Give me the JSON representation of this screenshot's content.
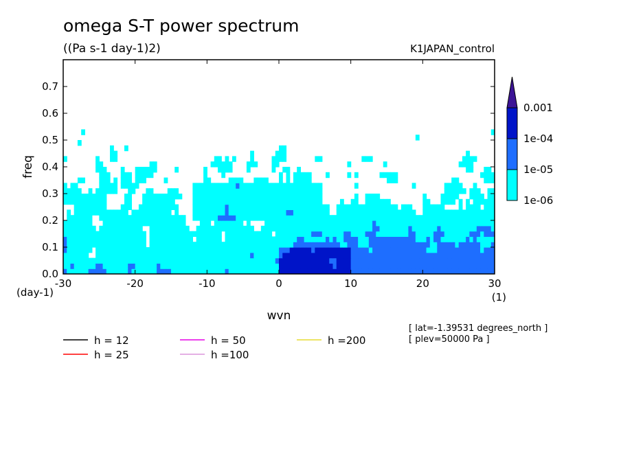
{
  "chart_data": {
    "type": "heatmap",
    "title": "omega S-T power spectrum",
    "units_label": "((Pa s-1 day-1)2)",
    "run_label": "K1JAPAN_control",
    "xlabel": "wvn",
    "ylabel": "freq",
    "x_unit_label": "(1)",
    "y_unit_label": "(day-1)",
    "xlim": [
      -30,
      30
    ],
    "ylim": [
      0,
      0.8
    ],
    "xticks": [
      -30,
      -20,
      -10,
      0,
      10,
      20,
      30
    ],
    "xtick_labels": [
      "-30",
      "-20",
      "-10",
      "0",
      "10",
      "20",
      "30"
    ],
    "yticks": [
      0,
      0.1,
      0.2,
      0.3,
      0.4,
      0.5,
      0.6,
      0.7
    ],
    "ytick_labels": [
      "0.0",
      "0.1",
      "0.2",
      "0.3",
      "0.4",
      "0.5",
      "0.6",
      "0.7"
    ],
    "colorbar": {
      "levels": [
        "1e-06",
        "1e-05",
        "1e-04",
        "0.001"
      ],
      "colors": [
        "#00ffff",
        "#1e6eff",
        "#0014c8",
        "#3c1496"
      ]
    },
    "dispersion_curves": [
      {
        "label": "h = 12",
        "h": 12,
        "color": "#000000"
      },
      {
        "label": "h = 25",
        "h": 25,
        "color": "#ff0000"
      },
      {
        "label": "h = 50",
        "h": 50,
        "color": "#e600e6"
      },
      {
        "label": "h =100",
        "h": 100,
        "color": "#dc96dc"
      },
      {
        "label": "h =200",
        "h": 200,
        "color": "#e6dc32"
      }
    ],
    "info_lines": [
      "[ lat=-1.39531 degrees_north ]",
      "[ plev=50000 Pa ]"
    ]
  }
}
